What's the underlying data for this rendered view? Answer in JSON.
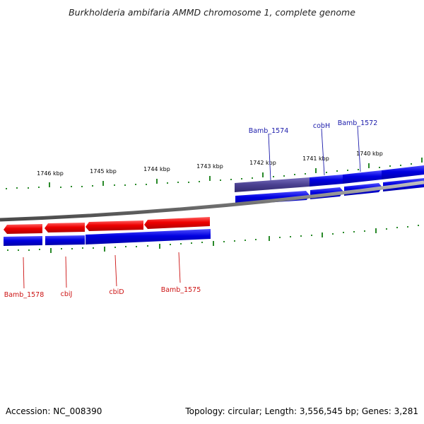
{
  "title": "Burkholderia ambifaria AMMD chromosome 1, complete genome",
  "footer": {
    "accession": "Accession: NC_008390",
    "summary": "Topology: circular; Length: 3,556,545 bp; Genes: 3,281"
  },
  "colors": {
    "forward_gene": "#0000dd",
    "reverse_gene": "#ee0000",
    "highlight_gene": "#4a4090",
    "backbone": "#7a7a7a",
    "ticks": "#2a8a2a",
    "forward_label": "#1a1aaa",
    "reverse_label": "#cc1111"
  },
  "scale_labels": [
    "1746 kbp",
    "1745 kbp",
    "1744 kbp",
    "1743 kbp",
    "1742 kbp",
    "1741 kbp",
    "1740 kbp"
  ],
  "forward_genes": [
    "Bamb_1574",
    "cobH",
    "Bamb_1572"
  ],
  "reverse_genes": [
    "Bamb_1578",
    "cbiJ",
    "cbiD",
    "Bamb_1575"
  ]
}
